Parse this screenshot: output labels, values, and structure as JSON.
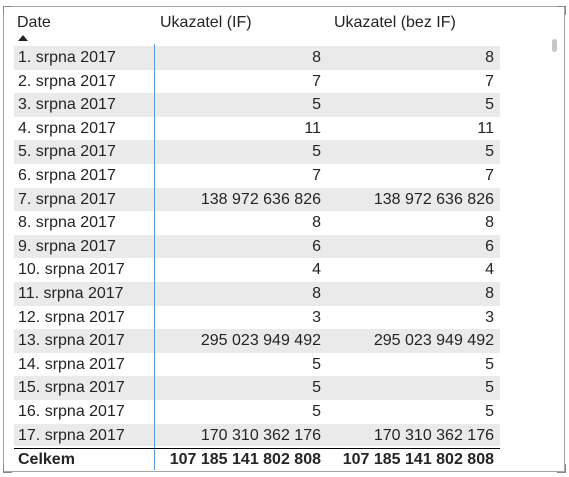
{
  "table": {
    "columns": {
      "date": "Date",
      "if": "Ukazatel (IF)",
      "bez": "Ukazatel (bez IF)"
    },
    "rows": [
      {
        "date": "1. srpna 2017",
        "if": "8",
        "bez": "8"
      },
      {
        "date": "2. srpna 2017",
        "if": "7",
        "bez": "7"
      },
      {
        "date": "3. srpna 2017",
        "if": "5",
        "bez": "5"
      },
      {
        "date": "4. srpna 2017",
        "if": "11",
        "bez": "11"
      },
      {
        "date": "5. srpna 2017",
        "if": "5",
        "bez": "5"
      },
      {
        "date": "6. srpna 2017",
        "if": "7",
        "bez": "7"
      },
      {
        "date": "7. srpna 2017",
        "if": "138 972 636 826",
        "bez": "138 972 636 826"
      },
      {
        "date": "8. srpna 2017",
        "if": "8",
        "bez": "8"
      },
      {
        "date": "9. srpna 2017",
        "if": "6",
        "bez": "6"
      },
      {
        "date": "10. srpna 2017",
        "if": "4",
        "bez": "4"
      },
      {
        "date": "11. srpna 2017",
        "if": "8",
        "bez": "8"
      },
      {
        "date": "12. srpna 2017",
        "if": "3",
        "bez": "3"
      },
      {
        "date": "13. srpna 2017",
        "if": "295 023 949 492",
        "bez": "295 023 949 492"
      },
      {
        "date": "14. srpna 2017",
        "if": "5",
        "bez": "5"
      },
      {
        "date": "15. srpna 2017",
        "if": "5",
        "bez": "5"
      },
      {
        "date": "16. srpna 2017",
        "if": "5",
        "bez": "5"
      },
      {
        "date": "17. srpna 2017",
        "if": "170 310 362 176",
        "bez": "170 310 362 176"
      }
    ],
    "total": {
      "label": "Celkem",
      "if": "107 185 141 802 808",
      "bez": "107 185 141 802 808"
    }
  },
  "colors": {
    "stripe": "#eaeaea",
    "divider": "#5b9bd5",
    "text": "#252423"
  }
}
